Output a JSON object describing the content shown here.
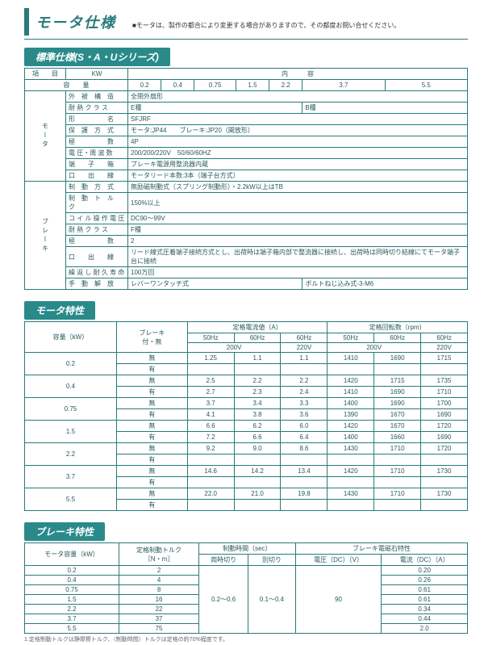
{
  "page_title": "モータ仕様",
  "page_note": "■モータは、製作の都合により変更する場合がありますので、その都度お問い合せください。",
  "sections": {
    "std": "標準仕様(S・A・Uシリーズ)",
    "motor_char": "モータ特性",
    "brake_char": "ブレーキ特性"
  },
  "std_header": {
    "item": "項　　目",
    "contents": "内　　　容",
    "kw": "KW",
    "kws": [
      "0.2",
      "0.4",
      "0.75",
      "1.5",
      "2.2",
      "3.7",
      "5.5"
    ]
  },
  "std_rows": {
    "r1": {
      "l": "外　被　構　造",
      "v": "全閉外扇形"
    },
    "r2": {
      "l": "耐 熱 ク ラ ス",
      "v1": "E種",
      "v2": "B種"
    },
    "r3": {
      "l": "形　　　　　名",
      "v": "SFJRF"
    },
    "r4": {
      "l": "保　護　方　式",
      "v": "モータ:JP44　　ブレーキ:JP20（開放形）"
    },
    "r5": {
      "l": "極　　　　　数",
      "v": "4P"
    },
    "r6": {
      "l": "電 圧・周 波 数",
      "v": "200/200/220V　50/60/60HZ"
    },
    "r7": {
      "l": "端　　子　　箱",
      "v": "ブレーキ電源用整流器内蔵"
    },
    "r8": {
      "l": "口　　出　　線",
      "v": "モータリード本数:3本（端子台方式）"
    },
    "r9": {
      "l": "制　動　方　式",
      "v": "無励磁制動式（スプリング制動形）・2.2kW以上はTB"
    },
    "r10": {
      "l": "制　動　ト　ル　ク",
      "v": "150%以上"
    },
    "r11": {
      "l": "コ イ ル 操 作 電 圧",
      "v": "DC90～99V"
    },
    "r12": {
      "l": "耐 熱 ク ラ ス",
      "v": "F種"
    },
    "r13": {
      "l": "極　　　　　数",
      "v": "2"
    },
    "r14": {
      "l": "口　　出　　線",
      "v": "リード線式圧着端子接続方式とし、出荷時は端子箱内部で整流器に接続し、出荷時は同時切り結線にてモータ端子台に接続"
    },
    "r15": {
      "l": "繰 返 し 耐 久 寿 命",
      "v": "100万回"
    },
    "r16": {
      "l": "手　動　解　放",
      "v1": "レバーワンタッチ式",
      "v2": "ボルトねじ込み式-3-M6"
    }
  },
  "motor_group": "モータ",
  "brake_group": "ブレーキ",
  "char_head": {
    "cap": "容量（kW）",
    "brk": "ブレーキ<br>付・無",
    "cur": "定格電流値（A）",
    "rpm": "定格回転数（rpm）",
    "hz50": "50Hz",
    "hz60": "60Hz",
    "v200": "200V",
    "v220": "220V"
  },
  "with": "有",
  "without": "無",
  "caps": [
    "0.2",
    "0.4",
    "0.75",
    "1.5",
    "2.2",
    "3.7",
    "5.5"
  ],
  "char_rows": [
    [
      "1.25",
      "1.1",
      "1.1",
      "1410",
      "1690",
      "1715"
    ],
    [
      "",
      "",
      "",
      "",
      "",
      ""
    ],
    [
      "2.5",
      "2.2",
      "2.2",
      "1420",
      "1715",
      "1735"
    ],
    [
      "2.7",
      "2.3",
      "2.4",
      "1410",
      "1690",
      "1710"
    ],
    [
      "3.7",
      "3.4",
      "3.3",
      "1400",
      "1690",
      "1700"
    ],
    [
      "4.1",
      "3.8",
      "3.6",
      "1390",
      "1670",
      "1690"
    ],
    [
      "6.6",
      "6.2",
      "6.0",
      "1420",
      "1670",
      "1720"
    ],
    [
      "7.2",
      "6.6",
      "6.4",
      "1400",
      "1660",
      "1690"
    ],
    [
      "9.2",
      "9.0",
      "8.6",
      "1430",
      "1710",
      "1720"
    ],
    [
      "",
      "",
      "",
      "",
      "",
      ""
    ],
    [
      "14.6",
      "14.2",
      "13.4",
      "1420",
      "1710",
      "1730"
    ],
    [
      "",
      "",
      "",
      "",
      "",
      ""
    ],
    [
      "22.0",
      "21.0",
      "19.8",
      "1430",
      "1710",
      "1730"
    ],
    [
      "",
      "",
      "",
      "",
      "",
      ""
    ]
  ],
  "brake_head": {
    "cap": "モータ容量（kW）",
    "torque": "定格制動トルク<br>［N・m］",
    "time": "制動時間（sec）",
    "mag": "ブレーキ電磁石特性",
    "t1": "両時切り",
    "t2": "別切り",
    "volt": "電圧（DC）（V）",
    "amp": "電流（DC）（A）"
  },
  "brake_rows": [
    {
      "cap": "0.2",
      "tq": "2",
      "a": "0.20"
    },
    {
      "cap": "0.4",
      "tq": "4",
      "a": "0.26"
    },
    {
      "cap": "0.75",
      "tq": "8",
      "a": "0.61"
    },
    {
      "cap": "1.5",
      "tq": "16",
      "a": "0.61"
    },
    {
      "cap": "2.2",
      "tq": "22",
      "a": "0.34"
    },
    {
      "cap": "3.7",
      "tq": "37",
      "a": "0.44"
    },
    {
      "cap": "5.5",
      "tq": "75",
      "a": "2.0"
    }
  ],
  "brake_t1": "0.2～0.6",
  "brake_t2": "0.1～0.4",
  "brake_v": "90",
  "footnote": "1.定格制動トルクは静摩擦トルク、（制動時間）トルクは定格の約70%程度です。"
}
